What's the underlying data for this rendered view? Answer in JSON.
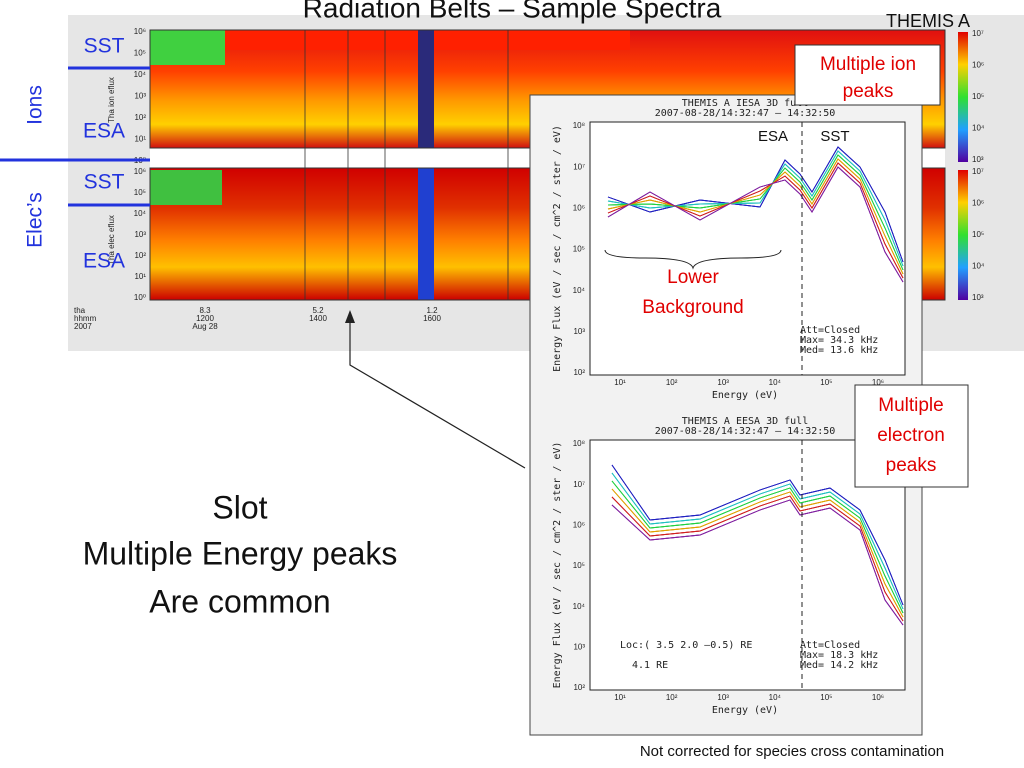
{
  "title": "Radiation Belts – Sample Spectra",
  "spacecraft": "THEMIS  A",
  "labels": {
    "ions": "Ions",
    "elecs": "Elec’s",
    "ion_sst": "SST",
    "ion_esa": "ESA",
    "elec_sst": "SST",
    "elec_esa": "ESA"
  },
  "spectrogram": {
    "ion_axis_label": "Tha ion eflux",
    "elec_axis_label": "Tha elec eflux",
    "ion_ticks": [
      "10⁶",
      "10⁵",
      "10⁴",
      "10³",
      "10²",
      "10¹",
      "10⁰"
    ],
    "elec_ticks": [
      "10⁶",
      "10⁵",
      "10⁴",
      "10³",
      "10²",
      "10¹",
      "10⁰"
    ],
    "colorbar_ticks": [
      "10⁷",
      "10⁶",
      "10⁵",
      "10⁴",
      "10³"
    ],
    "time_rows": [
      [
        "tha",
        "8.3",
        "5.2",
        "1.2"
      ],
      [
        "hhmm",
        "1200",
        "1400",
        "1600"
      ],
      [
        "2007",
        "Aug 28"
      ]
    ]
  },
  "plots": [
    {
      "title": "THEMIS A  IESA 3D  full",
      "time": "2007-08-28/14:32:47 – 14:32:50",
      "ylabel": "Energy Flux (eV / sec / cm^2 / ster / eV)",
      "xlabel": "Energy  (eV)",
      "yticks": [
        "10⁸",
        "10⁷",
        "10⁶",
        "10⁵",
        "10⁴",
        "10³",
        "10²"
      ],
      "xticks": [
        "10¹",
        "10²",
        "10³",
        "10⁴",
        "10⁵",
        "10⁶"
      ],
      "notes": [
        "Att=Closed",
        "Max= 34.3 kHz",
        "Med= 13.6 kHz"
      ]
    },
    {
      "title": "THEMIS A  EESA 3D  full",
      "time": "2007-08-28/14:32:47 – 14:32:50",
      "ylabel": "Energy Flux (eV / sec / cm^2 / ster / eV)",
      "xlabel": "Energy  (eV)",
      "yticks": [
        "10⁸",
        "10⁷",
        "10⁶",
        "10⁵",
        "10⁴",
        "10³",
        "10²"
      ],
      "xticks": [
        "10¹",
        "10²",
        "10³",
        "10⁴",
        "10⁵",
        "10⁶"
      ],
      "notes": [
        "Att=Closed",
        "Max= 18.3 kHz",
        "Med= 14.2 kHz"
      ],
      "loc": [
        "Loc:(  3.5  2.0 –0.5) RE",
        "4.1 RE"
      ]
    }
  ],
  "callouts": {
    "ion_peaks": [
      "Multiple ion",
      "peaks"
    ],
    "electron_peaks": [
      "Multiple",
      "electron",
      "peaks"
    ],
    "lower_background": [
      "Lower",
      "Background"
    ],
    "esa": "ESA",
    "sst": "SST"
  },
  "body": [
    "Slot",
    "Multiple Energy peaks",
    "Are common"
  ],
  "footnote": "Not corrected for species cross contamination"
}
